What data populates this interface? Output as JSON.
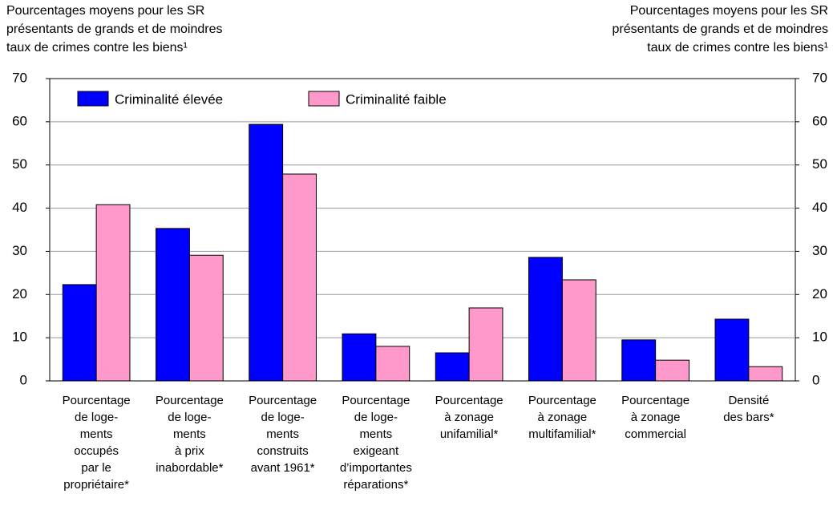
{
  "chart_data": {
    "type": "bar",
    "y_title": "Pourcentages moyens pour les SR\nprésentants de grands et de moindres\ntaux de crimes contre les biens¹",
    "y2_title": "Pourcentages moyens pour les SR\nprésentants de grands et de moindres\ntaux de crimes contre les biens¹",
    "categories": [
      "Pourcentage\nde loge-\nments\noccupés\npar le\npropriétaire*",
      "Pourcentage\nde loge-\nments\nà prix\ninabordable*",
      "Pourcentage\nde loge-\nments\nconstruits\navant 1961*",
      "Pourcentage\nde loge-\nments\nexigeant\nd’importantes\nréparations*",
      "Pourcentage\nà zonage\nunifamilial*",
      "Pourcentage\nà zonage\nmultifamilial*",
      "Pourcentage\nà zonage\ncommercial",
      "Densité\ndes bars*"
    ],
    "series": [
      {
        "name": "Criminalité élevée",
        "color": "#0000ff",
        "values": [
          22.3,
          35.3,
          59.4,
          10.9,
          6.5,
          28.6,
          9.5,
          14.3
        ]
      },
      {
        "name": "Criminalité faible",
        "color": "#ff99cc",
        "values": [
          40.8,
          29.1,
          47.9,
          8,
          16.9,
          23.4,
          4.8,
          3.3
        ]
      }
    ],
    "ylim": [
      0,
      70
    ],
    "yticks": [
      0,
      10,
      20,
      30,
      40,
      50,
      60,
      70
    ],
    "y2lim": [
      0,
      70
    ],
    "y2ticks": [
      0,
      10,
      20,
      30,
      40,
      50,
      60,
      70
    ],
    "grid": true
  }
}
